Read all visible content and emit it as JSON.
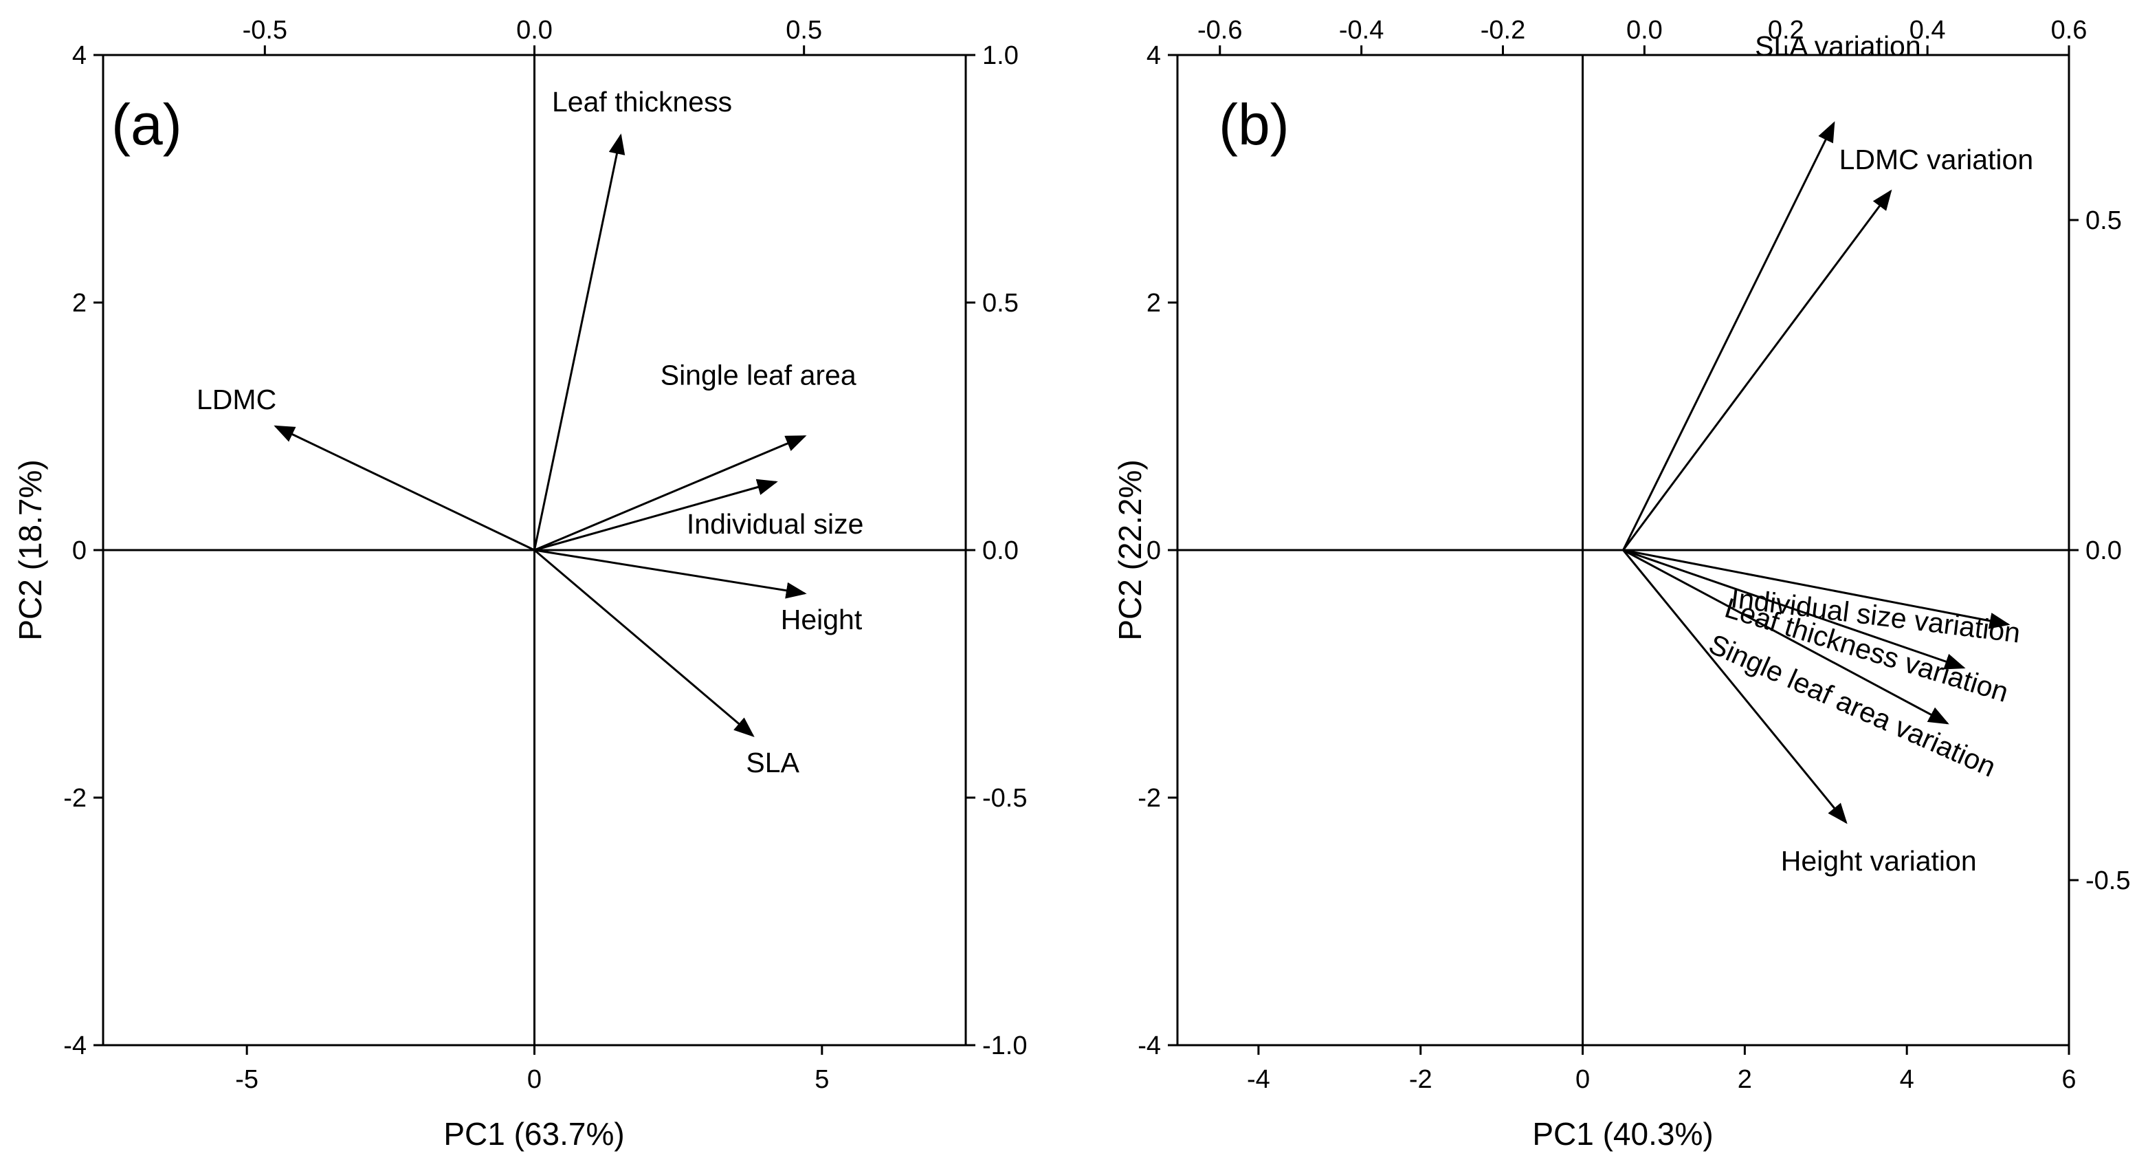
{
  "colors": {
    "axis": "#000000",
    "background": "#ffffff"
  },
  "chart_data": [
    {
      "type": "scatter",
      "subtype": "biplot",
      "title": "(a)",
      "xlabel": "PC1 (63.7%)",
      "ylabel": "PC2 (18.7%)",
      "xlim": [
        -7.5,
        7.5
      ],
      "ylim": [
        -4,
        4
      ],
      "x_ticks": [
        "-5",
        "0",
        "5"
      ],
      "x_tick_values": [
        -5,
        0,
        5
      ],
      "y_ticks": [
        "-4",
        "-2",
        "0",
        "2",
        "4"
      ],
      "y_tick_values": [
        -4,
        -2,
        0,
        2,
        4
      ],
      "top_axis": {
        "lim": [
          -0.8,
          0.8
        ],
        "ticks": [
          "-0.5",
          "0.0",
          "0.5"
        ],
        "tick_values": [
          -0.5,
          0.0,
          0.5
        ]
      },
      "right_axis": {
        "lim": [
          -1.0,
          1.0
        ],
        "ticks": [
          "-1.0",
          "-0.5",
          "0.0",
          "0.5",
          "1.0"
        ],
        "tick_values": [
          -1.0,
          -0.5,
          0.0,
          0.5,
          1.0
        ]
      },
      "origin": [
        0,
        0
      ],
      "vectors": [
        {
          "name": "Leaf thickness",
          "x": 1.5,
          "y": 3.35
        },
        {
          "name": "LDMC",
          "x": -4.5,
          "y": 1.0
        },
        {
          "name": "Single leaf area",
          "x": 4.7,
          "y": 0.92
        },
        {
          "name": "Individual size",
          "x": 4.2,
          "y": 0.55
        },
        {
          "name": "Height",
          "x": 4.7,
          "y": -0.35
        },
        {
          "name": "SLA",
          "x": 3.8,
          "y": -1.5
        }
      ]
    },
    {
      "type": "scatter",
      "subtype": "biplot",
      "title": "(b)",
      "xlabel": "PC1 (40.3%)",
      "ylabel": "PC2 (22.2%)",
      "xlim": [
        -5,
        6
      ],
      "ylim": [
        -4,
        4
      ],
      "x_ticks": [
        "-4",
        "-2",
        "0",
        "2",
        "4",
        "6"
      ],
      "x_tick_values": [
        -4,
        -2,
        0,
        2,
        4,
        6
      ],
      "y_ticks": [
        "-4",
        "-2",
        "0",
        "2",
        "4"
      ],
      "y_tick_values": [
        -4,
        -2,
        0,
        2,
        4
      ],
      "top_axis": {
        "lim": [
          -0.66,
          0.6
        ],
        "ticks": [
          "-0.6",
          "-0.4",
          "-0.2",
          "0.0",
          "0.2",
          "0.4",
          "0.6"
        ],
        "tick_values": [
          -0.6,
          -0.4,
          -0.2,
          0.0,
          0.2,
          0.4,
          0.6
        ]
      },
      "right_axis": {
        "lim": [
          -0.75,
          0.75
        ],
        "ticks": [
          "-0.5",
          "0.0",
          "0.5"
        ],
        "tick_values": [
          -0.5,
          0.0,
          0.5
        ]
      },
      "origin": [
        0.5,
        0
      ],
      "vectors": [
        {
          "name": "SLA variation",
          "x": 3.1,
          "y": 3.45
        },
        {
          "name": "LDMC variation",
          "x": 3.8,
          "y": 2.9
        },
        {
          "name": "Individual size variation",
          "x": 5.25,
          "y": -0.6
        },
        {
          "name": "Leaf thickness variation",
          "x": 4.7,
          "y": -0.95
        },
        {
          "name": "Single leaf area variation",
          "x": 4.5,
          "y": -1.4
        },
        {
          "name": "Height variation",
          "x": 3.25,
          "y": -2.2
        }
      ]
    }
  ]
}
